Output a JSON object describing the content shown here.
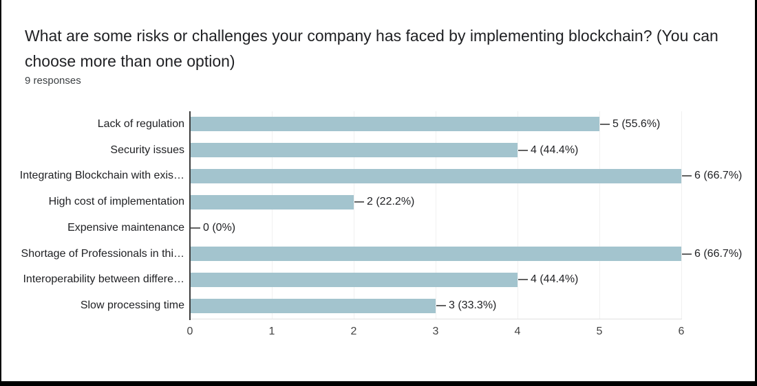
{
  "header": {
    "title": "What are some risks or challenges your company has faced by implementing blockchain? (You can choose more than one option)",
    "responses_count": "9 responses"
  },
  "chart_data": {
    "type": "bar",
    "orientation": "horizontal",
    "title": "What are some risks or challenges your company has faced by implementing blockchain? (You can choose more than one option)",
    "subtitle": "9 responses",
    "categories": [
      "Lack of regulation",
      "Security issues",
      "Integrating Blockchain with exis…",
      "High cost of implementation",
      "Expensive maintenance",
      "Shortage of Professionals in thi…",
      "Interoperability between differe…",
      "Slow processing time"
    ],
    "values": [
      5,
      4,
      6,
      2,
      0,
      6,
      4,
      3
    ],
    "labels": [
      "5 (55.6%)",
      "4 (44.4%)",
      "6 (66.7%)",
      "2 (22.2%)",
      "0 (0%)",
      "6 (66.7%)",
      "4 (44.4%)",
      "3 (33.3%)"
    ],
    "x_ticks": [
      0,
      1,
      2,
      3,
      4,
      5,
      6
    ],
    "xlim": [
      0,
      6
    ],
    "grid": true,
    "legend": "none",
    "bar_color": "#a3c4ce",
    "axis_color": "#3c3c3c",
    "gridline_color": "#f0f0f0",
    "baseline_color": "#e0e0e0",
    "connector_color": "#616161",
    "label_color": "#202124",
    "tick_color": "#424242",
    "total_responses": 9
  }
}
